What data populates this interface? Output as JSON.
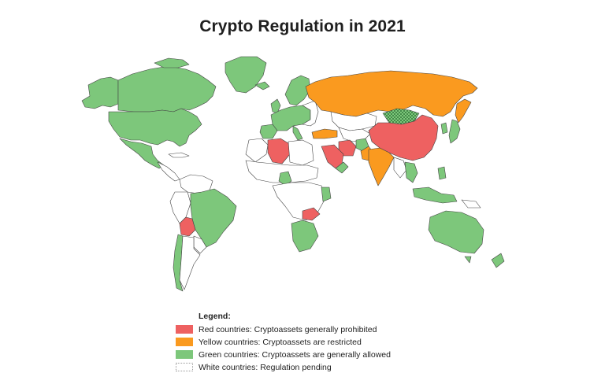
{
  "title": "Crypto Regulation in 2021",
  "colors": {
    "red": "#ee6161",
    "yellow": "#fa9a1f",
    "green": "#7dc77b",
    "white": "#ffffff",
    "border": "#444444",
    "partial_hatch": "#1a5e25"
  },
  "legend": {
    "title": "Legend:",
    "items": [
      {
        "key": "red",
        "label": "Red countries: Cryptoassets generally prohibited"
      },
      {
        "key": "yellow",
        "label": "Yellow countries: Cryptoassets are restricted"
      },
      {
        "key": "green",
        "label": "Green countries: Cryptoassets are generally allowed"
      },
      {
        "key": "white",
        "label": "White countries: Regulation pending"
      }
    ]
  },
  "regions": {
    "red": [
      "Algeria",
      "Egypt",
      "Saudi Arabia",
      "Iran",
      "China",
      "Bolivia",
      "Zambia",
      "Nepal",
      "Bangladesh"
    ],
    "yellow": [
      "Russia",
      "India",
      "Pakistan",
      "Turkey",
      "Georgia"
    ],
    "green": [
      "Canada",
      "United States",
      "Greenland",
      "Mexico",
      "Brazil",
      "Argentina",
      "Chile",
      "Western Europe",
      "Scandinavia",
      "Finland",
      "Kazakhstan",
      "Mongolia",
      "Japan",
      "South Korea",
      "Thailand",
      "Philippines",
      "Indonesia",
      "Australia",
      "New Zealand",
      "Nigeria",
      "Kenya",
      "South Africa",
      "Namibia",
      "Zimbabwe",
      "Mozambique",
      "Israel",
      "Oman",
      "Afghanistan",
      "Vietnam"
    ],
    "white": [
      "Most of Africa",
      "Central Asia",
      "Myanmar",
      "Peru",
      "Colombia",
      "Venezuela"
    ]
  }
}
